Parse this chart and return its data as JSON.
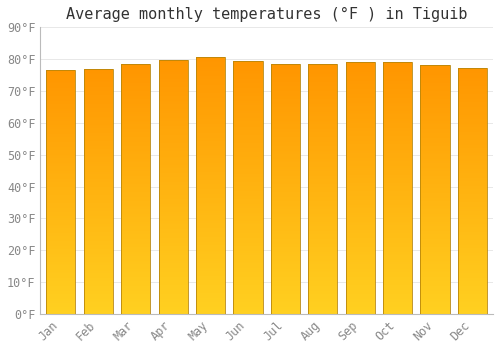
{
  "title": "Average monthly temperatures (°F ) in Tiguib",
  "months": [
    "Jan",
    "Feb",
    "Mar",
    "Apr",
    "May",
    "Jun",
    "Jul",
    "Aug",
    "Sep",
    "Oct",
    "Nov",
    "Dec"
  ],
  "values": [
    76.5,
    76.8,
    78.4,
    79.7,
    80.6,
    79.5,
    78.5,
    78.5,
    79.0,
    79.0,
    78.3,
    77.3
  ],
  "bar_color_top": "#FFA500",
  "bar_color_bottom": "#FFD700",
  "bar_edge_color": "#b8860b",
  "background_color": "#ffffff",
  "grid_color": "#e8e8e8",
  "ylim": [
    0,
    90
  ],
  "yticks": [
    0,
    10,
    20,
    30,
    40,
    50,
    60,
    70,
    80,
    90
  ],
  "title_fontsize": 11,
  "tick_fontsize": 8.5,
  "tick_color": "#888888",
  "font_family": "monospace",
  "bar_width": 0.78
}
